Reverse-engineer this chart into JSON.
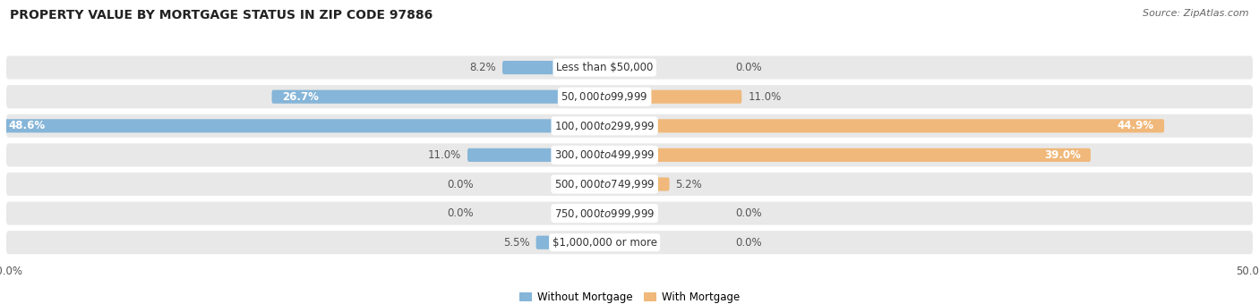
{
  "title": "PROPERTY VALUE BY MORTGAGE STATUS IN ZIP CODE 97886",
  "source": "Source: ZipAtlas.com",
  "categories": [
    "Less than $50,000",
    "$50,000 to $99,999",
    "$100,000 to $299,999",
    "$300,000 to $499,999",
    "$500,000 to $749,999",
    "$750,000 to $999,999",
    "$1,000,000 or more"
  ],
  "without_mortgage": [
    8.2,
    26.7,
    48.6,
    11.0,
    0.0,
    0.0,
    5.5
  ],
  "with_mortgage": [
    0.0,
    11.0,
    44.9,
    39.0,
    5.2,
    0.0,
    0.0
  ],
  "max_val": 50.0,
  "color_without": "#85b5d8",
  "color_with": "#f0b87a",
  "bg_row_color": "#e8e8e8",
  "title_fontsize": 10,
  "source_fontsize": 8,
  "bar_label_fontsize": 8.5,
  "category_fontsize": 8.5,
  "axis_label_fontsize": 8.5,
  "legend_fontsize": 8.5,
  "label_color_dark": "#555555",
  "label_color_white": "#ffffff"
}
